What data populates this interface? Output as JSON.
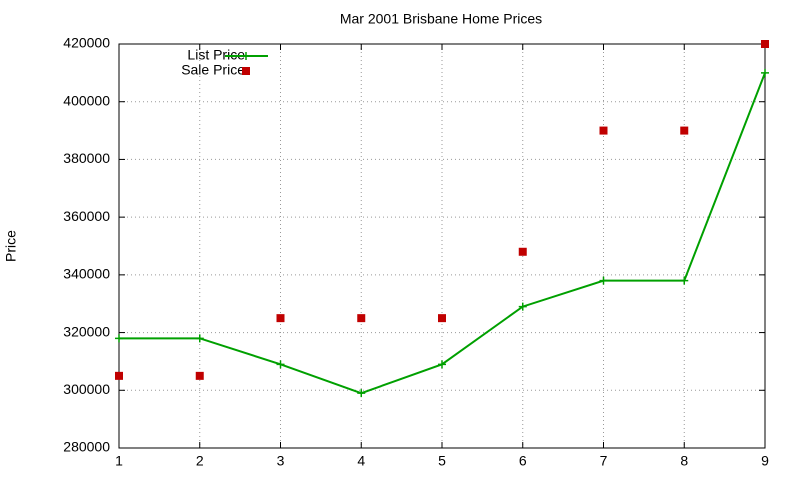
{
  "chart_data": {
    "type": "line",
    "title": "Mar 2001 Brisbane Home Prices",
    "y_label": "Price",
    "x": [
      1,
      2,
      3,
      4,
      5,
      6,
      7,
      8,
      9
    ],
    "series": [
      {
        "name": "List Price",
        "color": "#00a000",
        "mode": "lines+markers",
        "values": [
          318000,
          318000,
          309000,
          299000,
          309000,
          329000,
          338000,
          338000,
          410000
        ]
      },
      {
        "name": "Sale Price",
        "color": "#c00000",
        "mode": "markers",
        "values": [
          305000,
          305000,
          325000,
          325000,
          325000,
          348000,
          390000,
          390000,
          420000
        ]
      }
    ],
    "xlim": [
      1,
      9
    ],
    "xticks": [
      1,
      2,
      3,
      4,
      5,
      6,
      7,
      8,
      9
    ],
    "ylim": [
      280000,
      420000
    ],
    "yticks": [
      280000,
      300000,
      320000,
      340000,
      360000,
      380000,
      400000,
      420000
    ],
    "grid": true,
    "legend": "top-left"
  }
}
